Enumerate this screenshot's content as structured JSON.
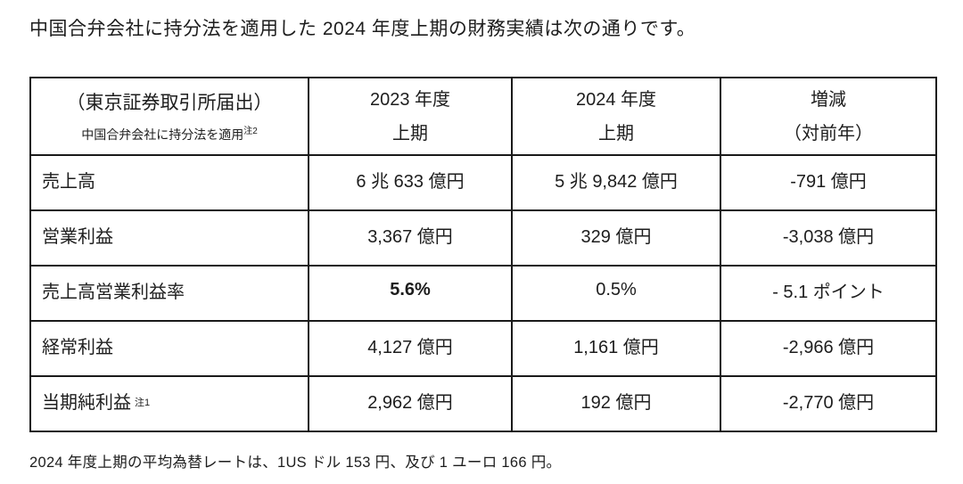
{
  "page": {
    "title": "中国合弁会社に持分法を適用した 2024 年度上期の財務実績は次の通りです。",
    "footer_note": "2024 年度上期の平均為替レートは、1US ドル 153 円、及び 1 ユーロ 166 円。"
  },
  "table": {
    "header": {
      "corner_line1": "（東京証券取引所届出）",
      "corner_line2": "中国合弁会社に持分法を適用",
      "corner_note": "注2",
      "col_fy2023_line1": "2023 年度",
      "col_fy2023_line2": "上期",
      "col_fy2024_line1": "2024 年度",
      "col_fy2024_line2": "上期",
      "col_change_line1": "増減",
      "col_change_line2": "（対前年）"
    },
    "rows": [
      {
        "label": "売上高",
        "note": "",
        "fy2023": "6 兆 633 億円",
        "fy2024": "5 兆 9,842 億円",
        "change": "-791 億円"
      },
      {
        "label": "営業利益",
        "note": "",
        "fy2023": "3,367 億円",
        "fy2024": "329 億円",
        "change": "-3,038 億円"
      },
      {
        "label": "売上高営業利益率",
        "note": "",
        "fy2023": "5.6%",
        "fy2024": "0.5%",
        "change": "- 5.1 ポイント"
      },
      {
        "label": "経常利益",
        "note": "",
        "fy2023": "4,127 億円",
        "fy2024": "1,161 億円",
        "change": "-2,966 億円"
      },
      {
        "label": "当期純利益",
        "note": "注1",
        "fy2023": "2,962 億円",
        "fy2024": "192 億円",
        "change": "-2,770 億円"
      }
    ]
  }
}
